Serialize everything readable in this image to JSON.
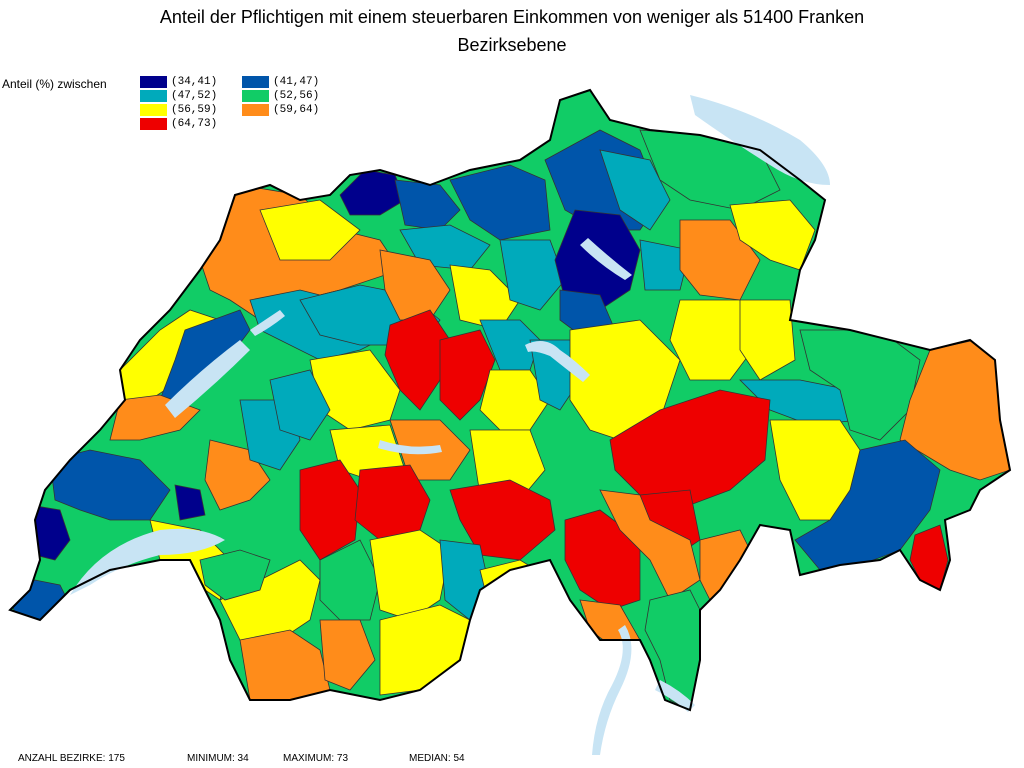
{
  "title": "Anteil der Pflichtigen mit einem steuerbaren Einkommen von weniger als 51400 Franken",
  "subtitle": "Bezirksebene",
  "legend": {
    "heading": "Anteil (%) zwischen",
    "items": [
      {
        "label": "(34,41)",
        "color": "#00008c"
      },
      {
        "label": "(41,47)",
        "color": "#0055aa"
      },
      {
        "label": "(47,52)",
        "color": "#00aabb"
      },
      {
        "label": "(52,56)",
        "color": "#11cc66"
      },
      {
        "label": "(56,59)",
        "color": "#ffff00"
      },
      {
        "label": "(59,64)",
        "color": "#ff8c1a"
      },
      {
        "label": "(64,73)",
        "color": "#ee0000"
      }
    ]
  },
  "stats": {
    "count": "ANZAHL BEZIRKE: 175",
    "minimum": "MINIMUM: 34",
    "maximum": "MAXIMUM: 73",
    "median": "MEDIAN: 54"
  },
  "lake_color": "#c8e4f4"
}
